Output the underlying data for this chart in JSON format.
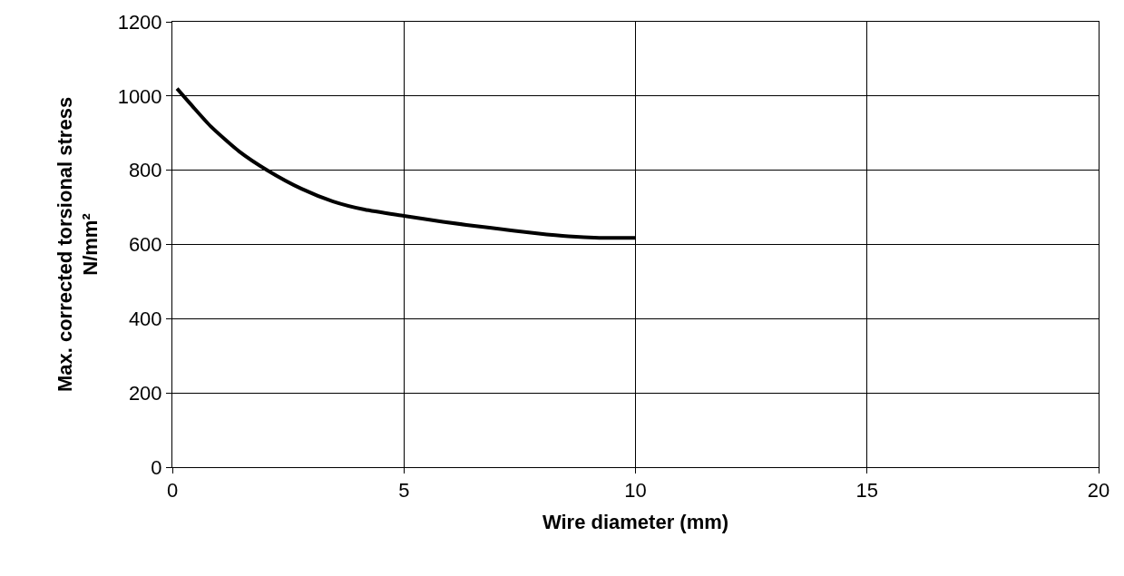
{
  "chart_data": {
    "type": "line",
    "xlabel": "Wire diameter (mm)",
    "ylabel": "Max. corrected torsional stress\nN/mm²",
    "x": [
      0.1,
      0.43,
      0.83,
      1.44,
      2.05,
      2.79,
      3.47,
      4.15,
      5,
      5.84,
      6.85,
      7.87,
      8.55,
      9.22,
      10
    ],
    "series": [
      {
        "color": "#000000",
        "values": [
          1020,
          973,
          918,
          851,
          800,
          750,
          716,
          694,
          677,
          661,
          645,
          630,
          622,
          618,
          618
        ]
      }
    ],
    "xlim": [
      0,
      20
    ],
    "xticks": [
      0,
      5,
      10,
      15,
      20
    ],
    "ylim": [
      0,
      1200
    ],
    "yticks": [
      0,
      200,
      400,
      600,
      800,
      1000,
      1200
    ],
    "grid": true,
    "marker": "none",
    "line_style": "solid"
  }
}
